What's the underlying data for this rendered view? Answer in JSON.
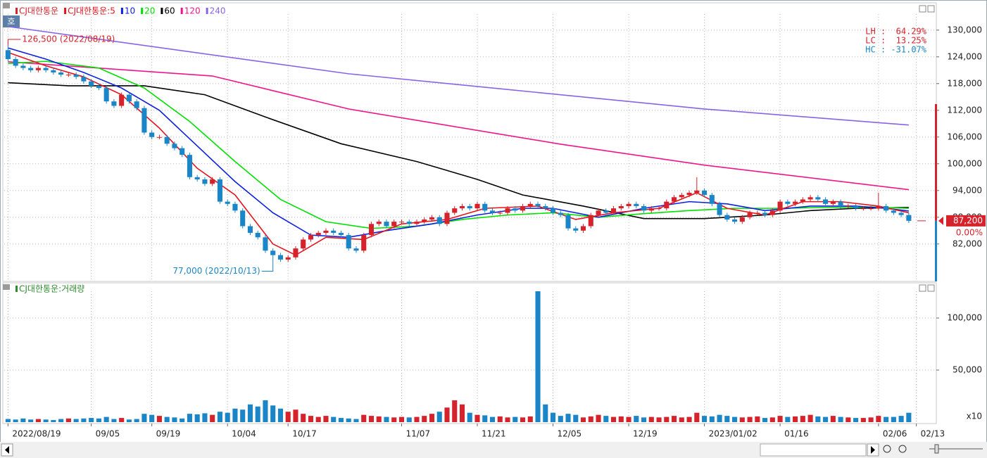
{
  "ui": {
    "badge": "호"
  },
  "chart_data": [
    {
      "type": "candlestick",
      "name": "CJ대한통운",
      "up_color": "#d6222b",
      "down_color": "#1b86c7",
      "legend": "top-left",
      "open": [
        125500,
        123500,
        122000,
        121500,
        121000,
        121500,
        121000,
        120500,
        120000,
        120000,
        119500,
        118500,
        117500,
        117000,
        114000,
        113000,
        115500,
        114000,
        112500,
        107000,
        106000,
        106000,
        104500,
        103500,
        102000,
        97000,
        96500,
        95500,
        96500,
        91500,
        91000,
        89500,
        86000,
        84500,
        83500,
        80500,
        79500,
        78500,
        79000,
        81000,
        83000,
        84000,
        84500,
        85000,
        84500,
        84000,
        81000,
        80500,
        84000,
        86500,
        87000,
        86000,
        87000,
        87000,
        86500,
        87000,
        87500,
        88000,
        86500,
        89000,
        90000,
        90500,
        90000,
        91000,
        89500,
        89000,
        89000,
        90000,
        89500,
        90500,
        91000,
        90500,
        90000,
        89000,
        88500,
        85500,
        85000,
        86000,
        88500,
        89500,
        89000,
        90000,
        90500,
        91000,
        90500,
        89500,
        90000,
        90000,
        91500,
        92500,
        93000,
        93500,
        94000,
        93000,
        91000,
        88500,
        87500,
        87000,
        88000,
        89000,
        89000,
        88500,
        89500,
        91500,
        91000,
        91500,
        92000,
        92500,
        92000,
        91000,
        91500,
        90500,
        90500,
        90000,
        90000,
        90000,
        90500,
        89500,
        89000,
        88500
      ],
      "high": [
        126500,
        124000,
        122500,
        122000,
        122000,
        122000,
        121500,
        121000,
        120500,
        120500,
        120000,
        119000,
        118000,
        117500,
        114500,
        116000,
        116000,
        114500,
        113000,
        107500,
        106500,
        106500,
        105000,
        104000,
        102500,
        97500,
        97000,
        97000,
        97000,
        92000,
        91500,
        90000,
        86500,
        85000,
        84000,
        81000,
        80000,
        79500,
        81500,
        83500,
        84500,
        85000,
        85500,
        85500,
        85000,
        84500,
        81500,
        84500,
        87000,
        87500,
        87500,
        87500,
        87500,
        87500,
        87500,
        88000,
        88500,
        88500,
        89500,
        90500,
        91000,
        91000,
        91500,
        91500,
        90000,
        89500,
        90500,
        90500,
        91000,
        91500,
        91500,
        91000,
        90500,
        89500,
        89000,
        86000,
        86500,
        89000,
        90000,
        90000,
        90500,
        91000,
        91500,
        91500,
        91000,
        90500,
        90500,
        92000,
        93000,
        93500,
        94000,
        97000,
        94500,
        93500,
        91500,
        89000,
        88000,
        88500,
        89500,
        89500,
        89500,
        90000,
        92000,
        92000,
        92000,
        92500,
        93000,
        93000,
        92500,
        92000,
        92000,
        91000,
        91000,
        90500,
        90500,
        93500,
        91000,
        90000,
        89500,
        89000
      ],
      "low": [
        123000,
        121500,
        121000,
        120500,
        120500,
        120500,
        120000,
        119500,
        119500,
        119000,
        118000,
        117000,
        116500,
        113500,
        112500,
        112500,
        113500,
        112000,
        106500,
        105500,
        105500,
        104000,
        103000,
        101500,
        96500,
        96000,
        95000,
        95000,
        91000,
        90500,
        89000,
        85500,
        84000,
        83000,
        80000,
        77000,
        78000,
        78000,
        78500,
        80500,
        82500,
        83500,
        84000,
        84000,
        83500,
        80500,
        80000,
        80000,
        83500,
        86000,
        85500,
        85500,
        86500,
        86000,
        86000,
        86500,
        87000,
        86000,
        86000,
        88500,
        89500,
        89500,
        89500,
        89000,
        88500,
        88500,
        88500,
        89000,
        89000,
        90000,
        90000,
        89500,
        88500,
        88000,
        85000,
        84500,
        84500,
        85500,
        88000,
        88500,
        88500,
        89500,
        90000,
        90000,
        89000,
        89000,
        89500,
        89500,
        91000,
        92000,
        92500,
        93000,
        92500,
        90500,
        88000,
        87000,
        86500,
        86500,
        87500,
        88500,
        88000,
        88000,
        89000,
        90500,
        90500,
        91000,
        91500,
        91500,
        90500,
        90500,
        90000,
        90000,
        89500,
        89500,
        89500,
        89500,
        89000,
        88500,
        88000,
        86700
      ],
      "close": [
        123500,
        122000,
        121500,
        121000,
        121500,
        121000,
        120500,
        120000,
        120000,
        119500,
        118500,
        117500,
        117000,
        114000,
        113000,
        115500,
        114000,
        112500,
        107000,
        106000,
        106000,
        104500,
        103500,
        102000,
        97000,
        96500,
        95500,
        96500,
        91500,
        91000,
        89500,
        86000,
        84500,
        83500,
        80500,
        79500,
        78500,
        79000,
        81000,
        83000,
        84000,
        84500,
        85000,
        84500,
        84000,
        81000,
        80500,
        84000,
        86500,
        87000,
        86000,
        87000,
        87000,
        86500,
        87000,
        87500,
        88000,
        86500,
        89000,
        90000,
        90500,
        90000,
        91000,
        89500,
        89000,
        89000,
        90000,
        89500,
        90500,
        91000,
        90500,
        90000,
        89000,
        88500,
        85500,
        85000,
        86000,
        88500,
        89500,
        89000,
        90000,
        90500,
        91000,
        90500,
        89500,
        90000,
        90000,
        91500,
        92500,
        93000,
        93500,
        94000,
        93000,
        91000,
        88500,
        87500,
        87000,
        88000,
        89000,
        89000,
        88500,
        89500,
        91500,
        91000,
        91500,
        92000,
        92500,
        92000,
        91000,
        91500,
        90500,
        90500,
        90000,
        90000,
        90000,
        90500,
        89500,
        89000,
        88500,
        87200
      ],
      "series": [
        {
          "name": "CJ대한통운:5",
          "color": "#e5131c",
          "x": [
            0,
            5,
            10,
            15,
            20,
            25,
            30,
            35,
            38,
            42,
            47,
            52,
            58,
            63,
            70,
            75,
            80,
            86,
            91,
            95,
            100,
            105,
            110,
            115,
            119
          ],
          "values": [
            125000,
            122000,
            119500,
            115500,
            108000,
            99000,
            93000,
            82000,
            79500,
            83500,
            83000,
            86500,
            87500,
            90000,
            90500,
            87500,
            89000,
            90000,
            93500,
            90000,
            88500,
            91500,
            91500,
            90500,
            89000
          ]
        },
        {
          "name": "10",
          "color": "#0b1fe0",
          "x": [
            0,
            5,
            10,
            15,
            20,
            25,
            30,
            35,
            40,
            45,
            50,
            56,
            62,
            68,
            72,
            78,
            84,
            90,
            95,
            100,
            106,
            112,
            116,
            119
          ],
          "values": [
            126000,
            123500,
            120500,
            117000,
            112000,
            104000,
            96000,
            89000,
            84000,
            83500,
            85000,
            86500,
            88500,
            90000,
            90000,
            88000,
            90000,
            91500,
            91000,
            89500,
            90500,
            90500,
            90000,
            89400
          ]
        },
        {
          "name": "20",
          "color": "#00e000",
          "x": [
            0,
            5,
            12,
            18,
            24,
            30,
            36,
            42,
            48,
            54,
            60,
            66,
            72,
            78,
            84,
            90,
            96,
            102,
            108,
            114,
            119
          ],
          "values": [
            122500,
            123000,
            121500,
            117000,
            109500,
            100500,
            92000,
            87000,
            85500,
            86000,
            87500,
            88500,
            89000,
            88000,
            88800,
            89500,
            90000,
            90000,
            90200,
            90300,
            90000
          ]
        },
        {
          "name": "60",
          "color": "#000000",
          "x": [
            0,
            8,
            18,
            26,
            34,
            44,
            54,
            62,
            68,
            76,
            84,
            92,
            100,
            106,
            112,
            119
          ],
          "values": [
            118200,
            117500,
            117500,
            115500,
            110500,
            104500,
            100500,
            96500,
            93000,
            90500,
            87700,
            87700,
            88500,
            89500,
            90000,
            90200
          ]
        },
        {
          "name": "120",
          "color": "#f0148c",
          "x": [
            0,
            27,
            45,
            73,
            92,
            119
          ],
          "values": [
            122900,
            119700,
            112300,
            104400,
            99700,
            94200
          ]
        },
        {
          "name": "240",
          "color": "#8a62e6",
          "x": [
            0,
            45,
            92,
            119
          ],
          "values": [
            130800,
            120200,
            112300,
            108700
          ]
        }
      ],
      "xlim": [
        -0.5,
        120.5
      ],
      "ylim": [
        73600,
        133600
      ],
      "yticks": [
        {
          "value": 82000,
          "label": "82,000"
        },
        {
          "value": 88000,
          "label": "88,000"
        },
        {
          "value": 94000,
          "label": "94,000"
        },
        {
          "value": 100000,
          "label": "100,000"
        },
        {
          "value": 106000,
          "label": "106,000"
        },
        {
          "value": 112000,
          "label": "112,000"
        },
        {
          "value": 118000,
          "label": "118,000"
        },
        {
          "value": 124000,
          "label": "124,000"
        },
        {
          "value": 130000,
          "label": "130,000"
        }
      ],
      "grid": true,
      "annotations": [
        {
          "x": 0,
          "y": 126500,
          "text": "126,500 (2022/08/19)"
        },
        {
          "x": 35,
          "y": 77000,
          "text": "77,000 (2022/10/13)"
        }
      ],
      "stats": [
        "LH :  64.29%",
        "LC :  13.25%",
        "HC : -31.07%"
      ],
      "price_tag": {
        "value": 87200,
        "label": "87,200"
      },
      "change_label": "0.00%"
    },
    {
      "type": "bar",
      "name": "CJ대한통운:거래량",
      "color": "#2e8b2e",
      "values": [
        3000,
        2500,
        3500,
        2500,
        3000,
        2500,
        2000,
        3000,
        3500,
        3000,
        3500,
        4000,
        3500,
        5000,
        3000,
        4000,
        2500,
        3000,
        8000,
        7000,
        6000,
        5000,
        4500,
        3500,
        8000,
        7500,
        8500,
        7000,
        10000,
        9000,
        13000,
        12000,
        17000,
        15000,
        21000,
        16000,
        13000,
        10000,
        12000,
        8000,
        6000,
        5000,
        6000,
        5000,
        4000,
        3500,
        3000,
        7000,
        6000,
        5500,
        5000,
        4500,
        5000,
        4500,
        5000,
        6000,
        8000,
        10000,
        14000,
        21000,
        17000,
        9000,
        7000,
        6500,
        5000,
        5500,
        4500,
        5000,
        4500,
        5500,
        125700,
        17000,
        9000,
        6000,
        8000,
        7000,
        4500,
        5500,
        7000,
        6000,
        5000,
        5500,
        5000,
        6000,
        4500,
        5000,
        4500,
        5000,
        6000,
        4500,
        5000,
        9000,
        6000,
        5500,
        7000,
        6000,
        5000,
        4500,
        5000,
        5500,
        4000,
        4500,
        6000,
        5000,
        5500,
        6000,
        7000,
        5500,
        5000,
        6000,
        5000,
        4500,
        4000,
        4000,
        4500,
        6000,
        5000,
        5000,
        6000,
        9000
      ],
      "xlim": [
        -0.5,
        120.5
      ],
      "ylim": [
        0,
        128400
      ],
      "yticks": [
        {
          "value": 50000,
          "label": "50,000"
        },
        {
          "value": 100000,
          "label": "100,000"
        }
      ],
      "xticks": [
        {
          "value": 0,
          "label": "2022/08/19"
        },
        {
          "value": 11,
          "label": "09/05"
        },
        {
          "value": 19,
          "label": "09/19"
        },
        {
          "value": 29,
          "label": "10/04"
        },
        {
          "value": 37,
          "label": "10/17"
        },
        {
          "value": 52,
          "label": "11/07"
        },
        {
          "value": 62,
          "label": "11/21"
        },
        {
          "value": 72,
          "label": "12/05"
        },
        {
          "value": 82,
          "label": "12/19"
        },
        {
          "value": 92,
          "label": "2023/01/02"
        },
        {
          "value": 102,
          "label": "01/16"
        },
        {
          "value": 115,
          "label": "02/06"
        },
        {
          "value": 120,
          "label": "02/13"
        }
      ],
      "unit_label": "x10",
      "grid": true
    }
  ]
}
